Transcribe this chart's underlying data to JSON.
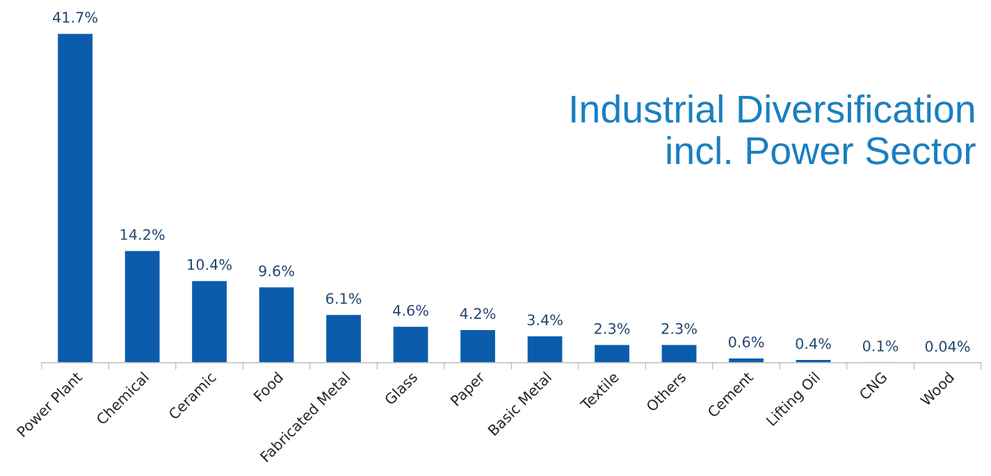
{
  "chart_data": {
    "type": "bar",
    "title": "Industrial Diversification\nincl. Power Sector",
    "categories": [
      "Power Plant",
      "Chemical",
      "Ceramic",
      "Food",
      "Fabricated Metal",
      "Glass",
      "Paper",
      "Basic Metal",
      "Textile",
      "Others",
      "Cement",
      "Lifting Oil",
      "CNG",
      "Wood"
    ],
    "values": [
      41.7,
      14.2,
      10.4,
      9.6,
      6.1,
      4.6,
      4.2,
      3.4,
      2.3,
      2.3,
      0.6,
      0.4,
      0.1,
      0.04
    ],
    "value_labels": [
      "41.7%",
      "14.2%",
      "10.4%",
      "9.6%",
      "6.1%",
      "4.6%",
      "4.2%",
      "3.4%",
      "2.3%",
      "2.3%",
      "0.6%",
      "0.4%",
      "0.1%",
      "0.04%"
    ],
    "color": "#0a5cab"
  }
}
